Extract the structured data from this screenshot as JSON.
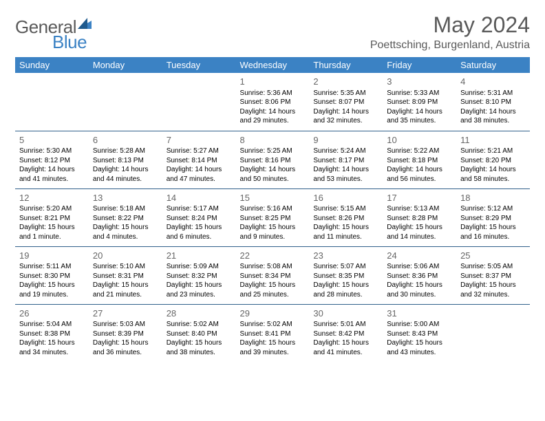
{
  "brand": {
    "part1": "General",
    "part2": "Blue"
  },
  "title": "May 2024",
  "location": "Poettsching, Burgenland, Austria",
  "colors": {
    "header_bg": "#3b82c4",
    "header_text": "#ffffff",
    "border": "#2f5f8a",
    "daynum": "#666666",
    "title": "#595959"
  },
  "weekdays": [
    "Sunday",
    "Monday",
    "Tuesday",
    "Wednesday",
    "Thursday",
    "Friday",
    "Saturday"
  ],
  "weeks": [
    [
      null,
      null,
      null,
      {
        "n": "1",
        "sr": "Sunrise: 5:36 AM",
        "ss": "Sunset: 8:06 PM",
        "dl1": "Daylight: 14 hours",
        "dl2": "and 29 minutes."
      },
      {
        "n": "2",
        "sr": "Sunrise: 5:35 AM",
        "ss": "Sunset: 8:07 PM",
        "dl1": "Daylight: 14 hours",
        "dl2": "and 32 minutes."
      },
      {
        "n": "3",
        "sr": "Sunrise: 5:33 AM",
        "ss": "Sunset: 8:09 PM",
        "dl1": "Daylight: 14 hours",
        "dl2": "and 35 minutes."
      },
      {
        "n": "4",
        "sr": "Sunrise: 5:31 AM",
        "ss": "Sunset: 8:10 PM",
        "dl1": "Daylight: 14 hours",
        "dl2": "and 38 minutes."
      }
    ],
    [
      {
        "n": "5",
        "sr": "Sunrise: 5:30 AM",
        "ss": "Sunset: 8:12 PM",
        "dl1": "Daylight: 14 hours",
        "dl2": "and 41 minutes."
      },
      {
        "n": "6",
        "sr": "Sunrise: 5:28 AM",
        "ss": "Sunset: 8:13 PM",
        "dl1": "Daylight: 14 hours",
        "dl2": "and 44 minutes."
      },
      {
        "n": "7",
        "sr": "Sunrise: 5:27 AM",
        "ss": "Sunset: 8:14 PM",
        "dl1": "Daylight: 14 hours",
        "dl2": "and 47 minutes."
      },
      {
        "n": "8",
        "sr": "Sunrise: 5:25 AM",
        "ss": "Sunset: 8:16 PM",
        "dl1": "Daylight: 14 hours",
        "dl2": "and 50 minutes."
      },
      {
        "n": "9",
        "sr": "Sunrise: 5:24 AM",
        "ss": "Sunset: 8:17 PM",
        "dl1": "Daylight: 14 hours",
        "dl2": "and 53 minutes."
      },
      {
        "n": "10",
        "sr": "Sunrise: 5:22 AM",
        "ss": "Sunset: 8:18 PM",
        "dl1": "Daylight: 14 hours",
        "dl2": "and 56 minutes."
      },
      {
        "n": "11",
        "sr": "Sunrise: 5:21 AM",
        "ss": "Sunset: 8:20 PM",
        "dl1": "Daylight: 14 hours",
        "dl2": "and 58 minutes."
      }
    ],
    [
      {
        "n": "12",
        "sr": "Sunrise: 5:20 AM",
        "ss": "Sunset: 8:21 PM",
        "dl1": "Daylight: 15 hours",
        "dl2": "and 1 minute."
      },
      {
        "n": "13",
        "sr": "Sunrise: 5:18 AM",
        "ss": "Sunset: 8:22 PM",
        "dl1": "Daylight: 15 hours",
        "dl2": "and 4 minutes."
      },
      {
        "n": "14",
        "sr": "Sunrise: 5:17 AM",
        "ss": "Sunset: 8:24 PM",
        "dl1": "Daylight: 15 hours",
        "dl2": "and 6 minutes."
      },
      {
        "n": "15",
        "sr": "Sunrise: 5:16 AM",
        "ss": "Sunset: 8:25 PM",
        "dl1": "Daylight: 15 hours",
        "dl2": "and 9 minutes."
      },
      {
        "n": "16",
        "sr": "Sunrise: 5:15 AM",
        "ss": "Sunset: 8:26 PM",
        "dl1": "Daylight: 15 hours",
        "dl2": "and 11 minutes."
      },
      {
        "n": "17",
        "sr": "Sunrise: 5:13 AM",
        "ss": "Sunset: 8:28 PM",
        "dl1": "Daylight: 15 hours",
        "dl2": "and 14 minutes."
      },
      {
        "n": "18",
        "sr": "Sunrise: 5:12 AM",
        "ss": "Sunset: 8:29 PM",
        "dl1": "Daylight: 15 hours",
        "dl2": "and 16 minutes."
      }
    ],
    [
      {
        "n": "19",
        "sr": "Sunrise: 5:11 AM",
        "ss": "Sunset: 8:30 PM",
        "dl1": "Daylight: 15 hours",
        "dl2": "and 19 minutes."
      },
      {
        "n": "20",
        "sr": "Sunrise: 5:10 AM",
        "ss": "Sunset: 8:31 PM",
        "dl1": "Daylight: 15 hours",
        "dl2": "and 21 minutes."
      },
      {
        "n": "21",
        "sr": "Sunrise: 5:09 AM",
        "ss": "Sunset: 8:32 PM",
        "dl1": "Daylight: 15 hours",
        "dl2": "and 23 minutes."
      },
      {
        "n": "22",
        "sr": "Sunrise: 5:08 AM",
        "ss": "Sunset: 8:34 PM",
        "dl1": "Daylight: 15 hours",
        "dl2": "and 25 minutes."
      },
      {
        "n": "23",
        "sr": "Sunrise: 5:07 AM",
        "ss": "Sunset: 8:35 PM",
        "dl1": "Daylight: 15 hours",
        "dl2": "and 28 minutes."
      },
      {
        "n": "24",
        "sr": "Sunrise: 5:06 AM",
        "ss": "Sunset: 8:36 PM",
        "dl1": "Daylight: 15 hours",
        "dl2": "and 30 minutes."
      },
      {
        "n": "25",
        "sr": "Sunrise: 5:05 AM",
        "ss": "Sunset: 8:37 PM",
        "dl1": "Daylight: 15 hours",
        "dl2": "and 32 minutes."
      }
    ],
    [
      {
        "n": "26",
        "sr": "Sunrise: 5:04 AM",
        "ss": "Sunset: 8:38 PM",
        "dl1": "Daylight: 15 hours",
        "dl2": "and 34 minutes."
      },
      {
        "n": "27",
        "sr": "Sunrise: 5:03 AM",
        "ss": "Sunset: 8:39 PM",
        "dl1": "Daylight: 15 hours",
        "dl2": "and 36 minutes."
      },
      {
        "n": "28",
        "sr": "Sunrise: 5:02 AM",
        "ss": "Sunset: 8:40 PM",
        "dl1": "Daylight: 15 hours",
        "dl2": "and 38 minutes."
      },
      {
        "n": "29",
        "sr": "Sunrise: 5:02 AM",
        "ss": "Sunset: 8:41 PM",
        "dl1": "Daylight: 15 hours",
        "dl2": "and 39 minutes."
      },
      {
        "n": "30",
        "sr": "Sunrise: 5:01 AM",
        "ss": "Sunset: 8:42 PM",
        "dl1": "Daylight: 15 hours",
        "dl2": "and 41 minutes."
      },
      {
        "n": "31",
        "sr": "Sunrise: 5:00 AM",
        "ss": "Sunset: 8:43 PM",
        "dl1": "Daylight: 15 hours",
        "dl2": "and 43 minutes."
      },
      null
    ]
  ]
}
